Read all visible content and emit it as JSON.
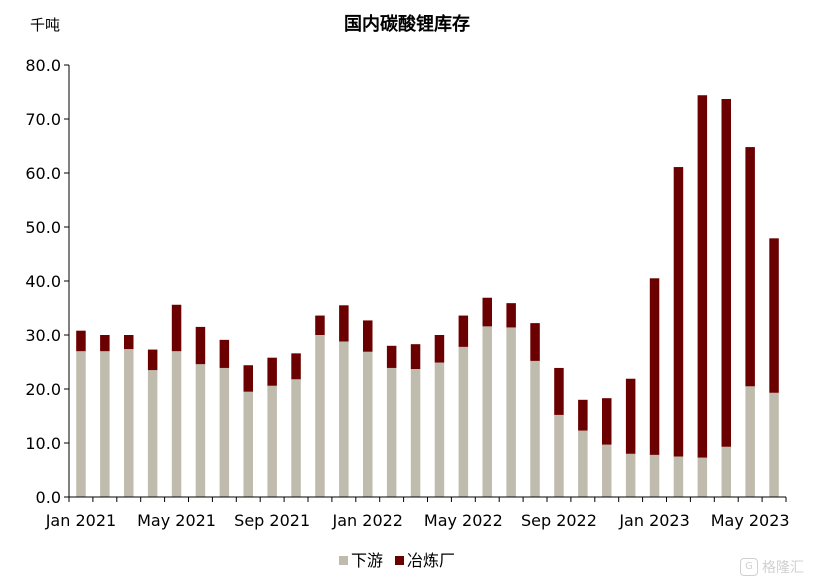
{
  "chart_data": {
    "type": "bar",
    "stacked": true,
    "title": "国内碳酸锂库存",
    "unit_label": "千吨",
    "ylim": [
      0,
      80
    ],
    "y_ticks": [
      "0.0",
      "10.0",
      "20.0",
      "30.0",
      "40.0",
      "50.0",
      "60.0",
      "70.0",
      "80.0"
    ],
    "categories": [
      "Jan 2021",
      "Feb 2021",
      "Mar 2021",
      "Apr 2021",
      "May 2021",
      "Jun 2021",
      "Jul 2021",
      "Aug 2021",
      "Sep 2021",
      "Oct 2021",
      "Nov 2021",
      "Dec 2021",
      "Jan 2022",
      "Feb 2022",
      "Mar 2022",
      "Apr 2022",
      "May 2022",
      "Jun 2022",
      "Jul 2022",
      "Aug 2022",
      "Sep 2022",
      "Oct 2022",
      "Nov 2022",
      "Dec 2022",
      "Jan 2023",
      "Feb 2023",
      "Mar 2023",
      "Apr 2023",
      "May 2023",
      "Jun 2023"
    ],
    "x_tick_labels": [
      "Jan 2021",
      "May 2021",
      "Sep 2021",
      "Jan 2022",
      "May 2022",
      "Sep 2022",
      "Jan 2023",
      "May 2023"
    ],
    "series": [
      {
        "name": "下游",
        "color": "#bfbcae",
        "values": [
          27.0,
          27.0,
          27.4,
          23.5,
          27.0,
          24.6,
          23.9,
          19.5,
          20.6,
          21.8,
          30.0,
          28.8,
          26.9,
          23.9,
          23.7,
          24.9,
          27.8,
          31.6,
          31.4,
          25.2,
          15.2,
          12.3,
          9.7,
          8.0,
          7.8,
          7.5,
          7.3,
          9.3,
          20.5,
          19.3
        ]
      },
      {
        "name": "冶炼厂",
        "color": "#6b0000",
        "values": [
          3.8,
          3.0,
          2.6,
          3.8,
          8.6,
          6.9,
          5.2,
          4.9,
          5.2,
          4.8,
          3.6,
          6.7,
          5.8,
          4.1,
          4.6,
          5.1,
          5.8,
          5.3,
          4.5,
          7.0,
          8.7,
          5.7,
          8.6,
          13.9,
          32.7,
          53.6,
          67.1,
          64.4,
          44.3,
          28.6
        ]
      }
    ],
    "legend_position": "bottom",
    "grid": false
  },
  "watermark": {
    "icon": "G",
    "text": "格隆汇"
  }
}
